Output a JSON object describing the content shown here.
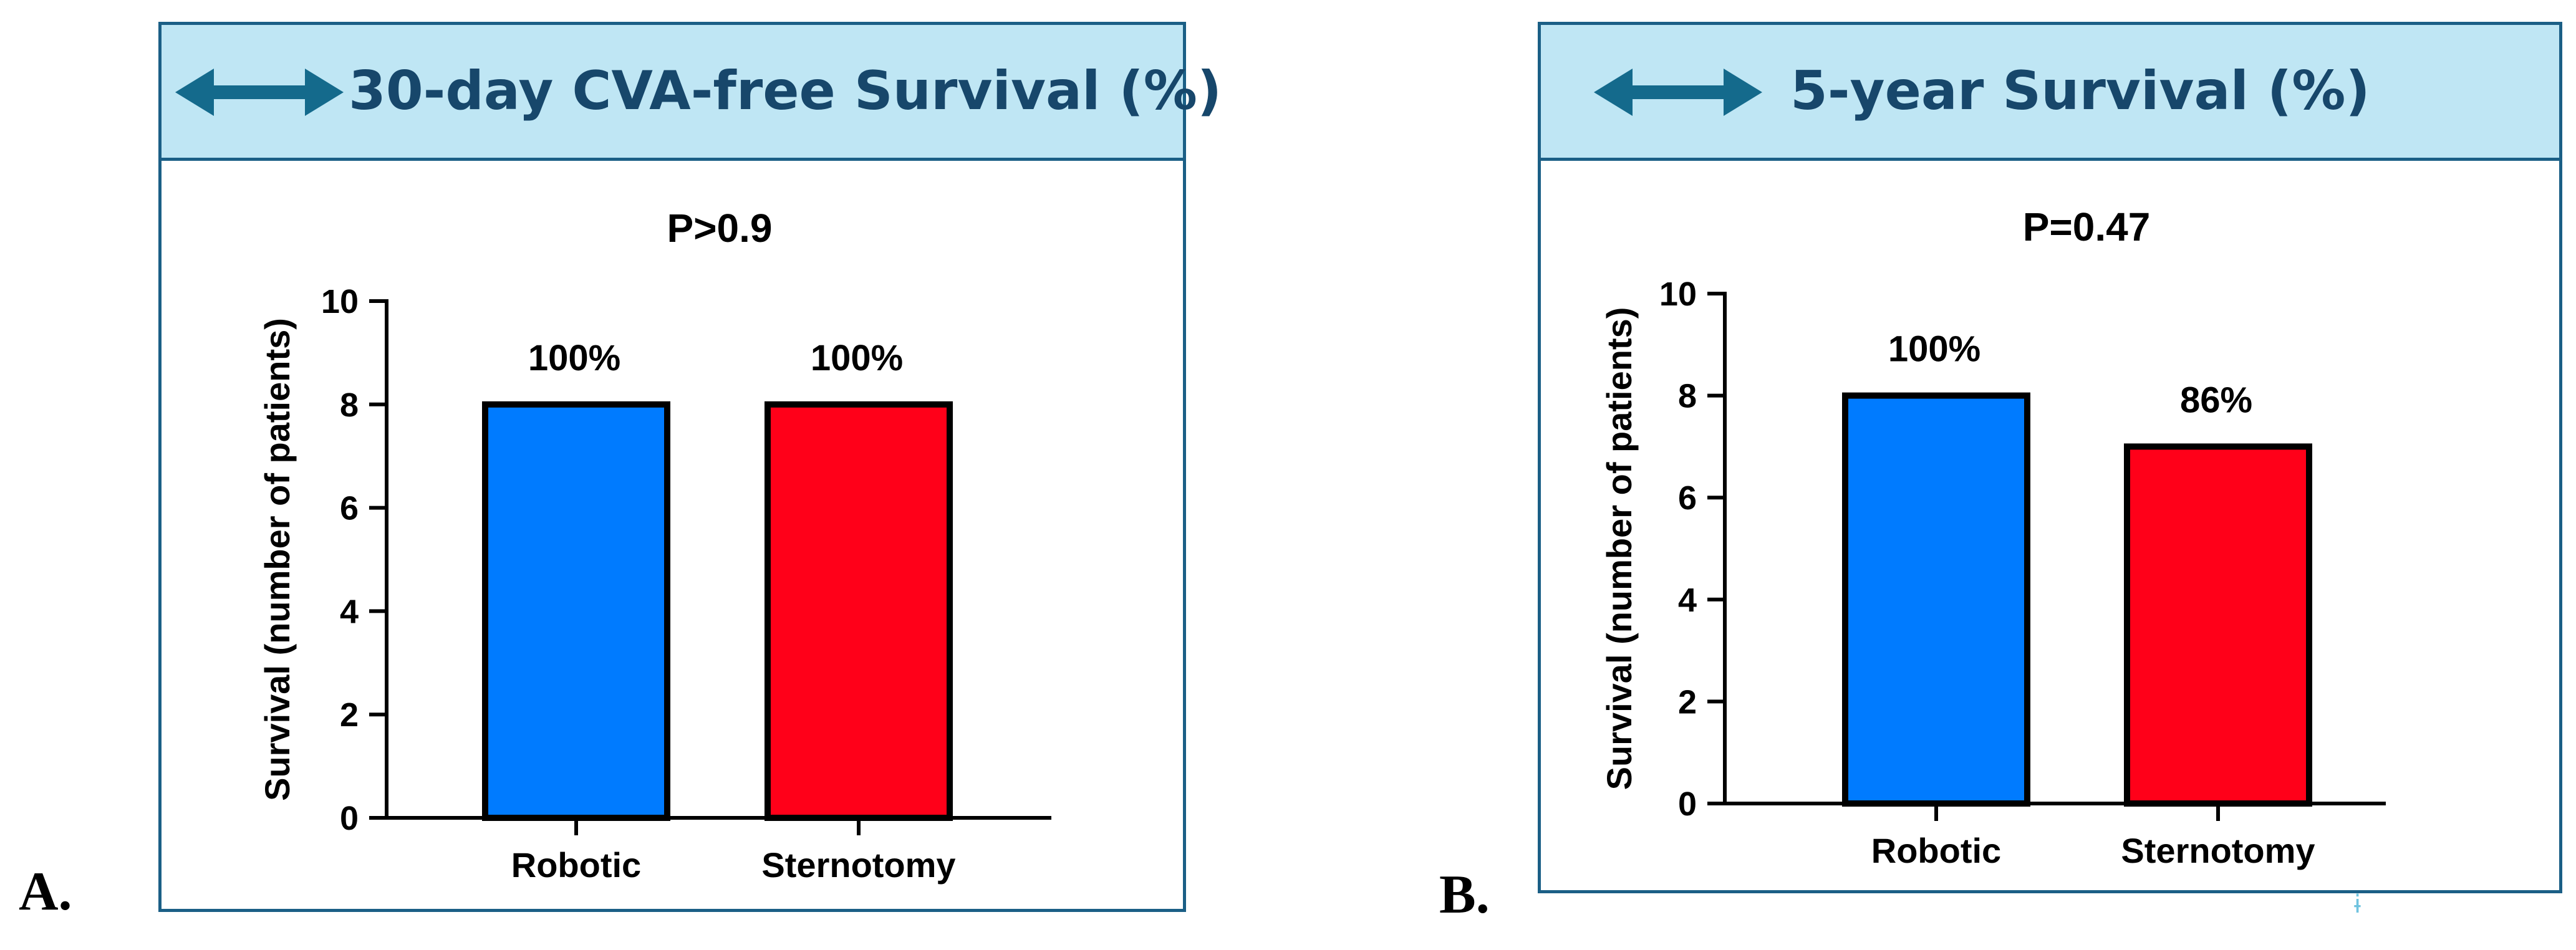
{
  "panels": [
    {
      "label": "A.",
      "title": "30-day CVA-free Survival (%)",
      "arrow_icon": "double-arrow-icon"
    },
    {
      "label": "B.",
      "title": "5-year Survival (%)",
      "arrow_icon": "double-arrow-icon"
    }
  ],
  "colors": {
    "border": "#1b5f86",
    "header_bg": "#bfe6f4",
    "title": "#17476b",
    "robotic": "#007bff",
    "sternotomy": "#ff0019"
  },
  "chart_data": [
    {
      "type": "bar",
      "title": "P>0.9",
      "ylabel": "Survival (number of patients)",
      "xlabel": "",
      "categories": [
        "Robotic",
        "Sternotomy"
      ],
      "values": [
        8,
        8
      ],
      "data_labels": [
        "100%",
        "100%"
      ],
      "ylim": [
        0,
        10
      ],
      "yticks": [
        0,
        2,
        4,
        6,
        8,
        10
      ],
      "colors": [
        "#007bff",
        "#ff0019"
      ]
    },
    {
      "type": "bar",
      "title": "P=0.47",
      "ylabel": "Survival (number of patients)",
      "xlabel": "",
      "categories": [
        "Robotic",
        "Sternotomy"
      ],
      "values": [
        8,
        7
      ],
      "data_labels": [
        "100%",
        "86%"
      ],
      "ylim": [
        0,
        10
      ],
      "yticks": [
        0,
        2,
        4,
        6,
        8,
        10
      ],
      "colors": [
        "#007bff",
        "#ff0019"
      ]
    }
  ],
  "watermark": "ɨ"
}
